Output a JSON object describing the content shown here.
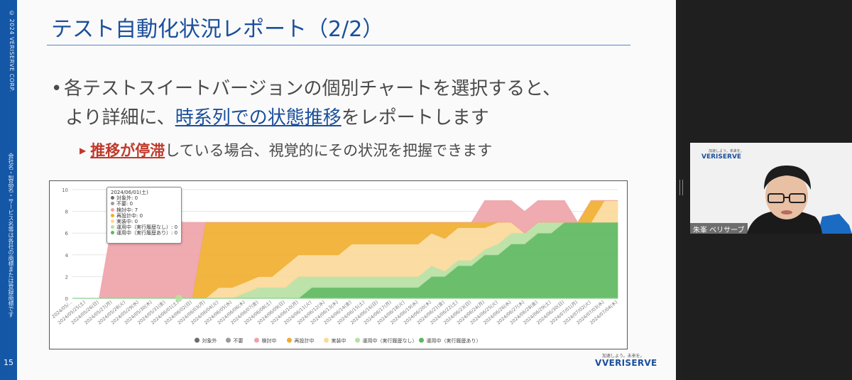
{
  "sidebar": {
    "copyright": "© 2024 VERISERVE CORP.",
    "confidential": "会社名・製品名・サービス名等は各社の商標または登録商標です",
    "page_number": "15"
  },
  "slide": {
    "title": "テスト自動化状況レポート（2/2）",
    "bullet_line1": "各テストスイートバージョンの個別チャートを選択すると、",
    "bullet_line2_pre": "より詳細に、",
    "bullet_line2_hl": "時系列での状態推移",
    "bullet_line2_post": "をレポートします",
    "sub_hl": "推移が停滞",
    "sub_post": "している場合、視覚的にその状況を把握できます"
  },
  "tooltip": {
    "date": "2024/06/01(土)",
    "rows": [
      {
        "label": "対象外: 0",
        "color": "#6b6b6b"
      },
      {
        "label": "不要: 0",
        "color": "#9a9a9a"
      },
      {
        "label": "検討中: 7",
        "color": "#eea3a8"
      },
      {
        "label": "再設計中: 0",
        "color": "#f0ad2c"
      },
      {
        "label": "実装中: 0",
        "color": "#fbd99a"
      },
      {
        "label": "運用中（実行履歴なし）: 0",
        "color": "#b6e0a1"
      },
      {
        "label": "運用中（実行履歴あり）: 0",
        "color": "#5cb85c"
      }
    ]
  },
  "chart_data": {
    "type": "area",
    "stacked": true,
    "ylim": [
      0,
      10
    ],
    "yticks": [
      0,
      2,
      4,
      6,
      8,
      10
    ],
    "x": [
      "2024/05/...",
      "2024/05/25(土)",
      "2024/05/26(日)",
      "2024/05/27(月)",
      "2024/05/28(火)",
      "2024/05/29(水)",
      "2024/05/30(木)",
      "2024/05/31(金)",
      "2024/06/01(土)",
      "2024/06/02(日)",
      "2024/06/03(月)",
      "2024/06/04(火)",
      "2024/06/05(水)",
      "2024/06/06(木)",
      "2024/06/07(金)",
      "2024/06/08(土)",
      "2024/06/09(日)",
      "2024/06/10(月)",
      "2024/06/11(火)",
      "2024/06/12(水)",
      "2024/06/13(木)",
      "2024/06/14(金)",
      "2024/06/15(土)",
      "2024/06/16(日)",
      "2024/06/17(月)",
      "2024/06/18(火)",
      "2024/06/19(水)",
      "2024/06/20(木)",
      "2024/06/21(金)",
      "2024/06/22(土)",
      "2024/06/23(日)",
      "2024/06/24(月)",
      "2024/06/25(火)",
      "2024/06/26(水)",
      "2024/06/27(木)",
      "2024/06/28(金)",
      "2024/06/29(土)",
      "2024/06/30(日)",
      "2024/07/01(月)",
      "2024/07/02(火)",
      "2024/07/03(水)",
      "2024/07/04(木)"
    ],
    "series": [
      {
        "name": "対象外",
        "color": "#6b6b6b",
        "values": [
          0,
          0,
          0,
          0,
          0,
          0,
          0,
          0,
          0,
          0,
          0,
          0,
          0,
          0,
          0,
          0,
          0,
          0,
          0,
          0,
          0,
          0,
          0,
          0,
          0,
          0,
          0,
          0,
          0,
          0,
          0,
          0,
          0,
          0,
          0,
          0,
          0,
          0,
          0,
          0,
          0,
          0
        ]
      },
      {
        "name": "不要",
        "color": "#9a9a9a",
        "values": [
          0,
          0,
          0,
          0,
          0,
          0,
          0,
          0,
          0,
          0,
          0,
          0,
          0,
          0,
          0,
          0,
          0,
          0,
          0,
          0,
          0,
          0,
          0,
          0,
          0,
          0,
          0,
          0,
          0,
          0,
          0,
          0,
          0,
          0,
          0,
          0,
          0,
          0,
          0,
          0,
          0,
          0
        ]
      },
      {
        "name": "運用中（実行履歴あり）",
        "color": "#5cb85c",
        "values": [
          0,
          0,
          0,
          0,
          0,
          0,
          0,
          0,
          0,
          0,
          0,
          0,
          0,
          0,
          0,
          0,
          0,
          0,
          1,
          1,
          1,
          1,
          1,
          1,
          1,
          1,
          1,
          2,
          2,
          3,
          3,
          4,
          4,
          5,
          5,
          6,
          6,
          7,
          7,
          7,
          7,
          7
        ]
      },
      {
        "name": "運用中（実行履歴なし）",
        "color": "#b6e0a1",
        "values": [
          0,
          0,
          0,
          0,
          0,
          0,
          0,
          0,
          0,
          0,
          0,
          0,
          0,
          0.5,
          1,
          1,
          1,
          2,
          1,
          1,
          1,
          1,
          1,
          1,
          1,
          1,
          1,
          1,
          0.5,
          0.5,
          0.5,
          0.5,
          1,
          1,
          1,
          1,
          1,
          0,
          0,
          0,
          0,
          0
        ]
      },
      {
        "name": "実装中",
        "color": "#fbd99a",
        "values": [
          0,
          0,
          0,
          0,
          0,
          0,
          0,
          0,
          0,
          0,
          0,
          1,
          1,
          1,
          1,
          1,
          2,
          2,
          2,
          2,
          2,
          3,
          3,
          3,
          3,
          3,
          3,
          3,
          3,
          3,
          3,
          2,
          2,
          1,
          0,
          0,
          0,
          0,
          0,
          0,
          2,
          2
        ]
      },
      {
        "name": "再設計中",
        "color": "#f0ad2c",
        "values": [
          0,
          0,
          0,
          0,
          0,
          0,
          0,
          0,
          0,
          0,
          7,
          6,
          6,
          5.5,
          5,
          5,
          4,
          3,
          3,
          3,
          3,
          2,
          2,
          2,
          2,
          2,
          2,
          1,
          1.5,
          0.5,
          0.5,
          0.5,
          0,
          0,
          0,
          0,
          0,
          0,
          0,
          2,
          0,
          0
        ]
      },
      {
        "name": "検討中",
        "color": "#eea3a8",
        "values": [
          0,
          0,
          0,
          7,
          7,
          7,
          7,
          7,
          7,
          7,
          0,
          0,
          0,
          0,
          0,
          0,
          0,
          0,
          0,
          0,
          0,
          0,
          0,
          0,
          0,
          0,
          0,
          0,
          0,
          0,
          0,
          2,
          2,
          2,
          2,
          2,
          2,
          2,
          0,
          0,
          0,
          0
        ]
      }
    ],
    "legend": [
      "対象外",
      "不要",
      "検討中",
      "再設計中",
      "実装中",
      "運用中（実行履歴なし）",
      "運用中（実行履歴あり）"
    ],
    "legend_colors": [
      "#6b6b6b",
      "#9a9a9a",
      "#eea3a8",
      "#f0ad2c",
      "#fbd99a",
      "#b6e0a1",
      "#5cb85c"
    ],
    "legend_position": "bottom",
    "grid": true
  },
  "brand": {
    "tagline": "加速しよう。未来を。",
    "name": "VERISERVE",
    "mark": "V"
  },
  "camera": {
    "tagline": "加速しよう。未来を。",
    "logo": "VERISERVE",
    "participant": "朱峯 ベリサーブ"
  }
}
